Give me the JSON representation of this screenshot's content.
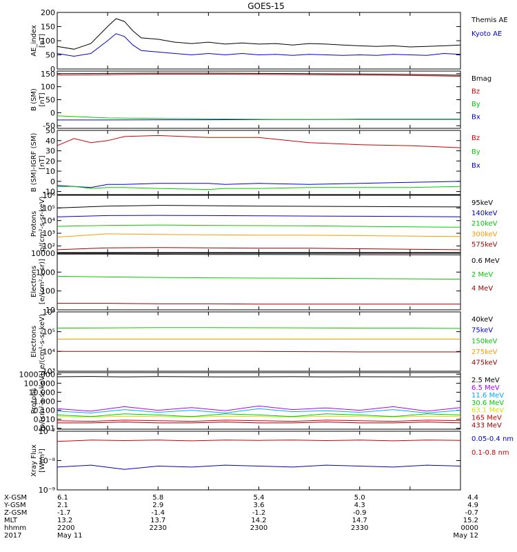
{
  "title": "GOES-15",
  "colors": {
    "black": "#000000",
    "blue": "#0000cc",
    "green": "#00cc00",
    "red": "#cc0000",
    "orange": "#ff9900",
    "yellow": "#dddd00",
    "cyan": "#00aaff",
    "purple": "#aa00ff",
    "brown": "#883300",
    "darkred": "#990000"
  },
  "chart_data": [
    {
      "type": "line",
      "ylabel": [
        "AE_index",
        "[nT]"
      ],
      "ylim": [
        0,
        200
      ],
      "yticks": [
        "0",
        "50",
        "100",
        "150",
        "200"
      ],
      "yscale": "linear",
      "x_minutes_since_2200": [
        0,
        10,
        20,
        30,
        35,
        40,
        45,
        50,
        60,
        70,
        80,
        90,
        100,
        110,
        120,
        130,
        140,
        150,
        160,
        170,
        180,
        190,
        200,
        210,
        220,
        230,
        240
      ],
      "series": [
        {
          "name": "Kyoto AE",
          "color": "blue",
          "values": [
            55,
            45,
            55,
            100,
            125,
            115,
            85,
            65,
            60,
            55,
            50,
            55,
            50,
            55,
            50,
            52,
            48,
            52,
            50,
            48,
            50,
            48,
            52,
            50,
            48,
            55,
            52
          ]
        },
        {
          "name": "Themis AE",
          "color": "black",
          "values": [
            80,
            70,
            90,
            150,
            178,
            168,
            135,
            110,
            105,
            95,
            90,
            95,
            88,
            92,
            88,
            90,
            85,
            90,
            88,
            85,
            82,
            80,
            82,
            78,
            80,
            82,
            85
          ]
        }
      ]
    },
    {
      "type": "line",
      "ylabel": [
        "B (SM)",
        "[nT]"
      ],
      "ylim": [
        -60,
        160
      ],
      "yticks": [
        "-50",
        "0",
        "50",
        "100",
        "150"
      ],
      "yscale": "linear",
      "x_minutes_since_2200": [
        0,
        30,
        60,
        90,
        120,
        150,
        180,
        210,
        240
      ],
      "series": [
        {
          "name": "Bx",
          "color": "blue",
          "values": [
            -28,
            -28,
            -27,
            -27,
            -26,
            -26,
            -25,
            -25,
            -25
          ]
        },
        {
          "name": "By",
          "color": "green",
          "values": [
            -12,
            -20,
            -22,
            -24,
            -25,
            -26,
            -26,
            -26,
            -26
          ]
        },
        {
          "name": "Bz",
          "color": "red",
          "values": [
            145,
            146,
            148,
            148,
            147,
            146,
            145,
            143,
            140
          ]
        },
        {
          "name": "Bmag",
          "color": "black",
          "values": [
            150,
            151,
            152,
            152,
            151,
            150,
            149,
            147,
            144
          ]
        }
      ]
    },
    {
      "type": "line",
      "ylabel": [
        "B (SM)-IGRF (SM)",
        "[nT]"
      ],
      "ylim": [
        -13,
        50
      ],
      "yticks": [
        "-10",
        "0",
        "10",
        "20",
        "30",
        "40",
        "50"
      ],
      "yscale": "linear",
      "x_minutes_since_2200": [
        0,
        10,
        20,
        30,
        40,
        60,
        90,
        100,
        120,
        150,
        180,
        210,
        240
      ],
      "series": [
        {
          "name": "Bx",
          "color": "blue",
          "values": [
            -4,
            -5,
            -6,
            -3,
            -3,
            -2,
            -2,
            -3,
            -2,
            -3,
            -2,
            -1,
            0
          ]
        },
        {
          "name": "By",
          "color": "green",
          "values": [
            -5,
            -5,
            -7,
            -6,
            -6,
            -7,
            -8,
            -7,
            -7,
            -6,
            -6,
            -6,
            -5
          ]
        },
        {
          "name": "Bz",
          "color": "red",
          "values": [
            35,
            42,
            38,
            40,
            44,
            45,
            43,
            43,
            43,
            38,
            36,
            35,
            33
          ]
        }
      ]
    },
    {
      "type": "line",
      "ylabel": [
        "Protons",
        "p/(cm²-s-sr-keV)"
      ],
      "ylim": [
        30,
        1000000
      ],
      "yticks": [
        "10²",
        "10³",
        "10⁴",
        "10⁵",
        "10⁶"
      ],
      "ytick_values": [
        100,
        1000,
        10000,
        100000,
        1000000
      ],
      "yscale": "log",
      "x_minutes_since_2200": [
        0,
        30,
        60,
        90,
        120,
        150,
        180,
        210,
        240
      ],
      "series": [
        {
          "name": "575keV",
          "color": "darkred",
          "values": [
            50,
            70,
            75,
            70,
            65,
            65,
            60,
            55,
            50
          ]
        },
        {
          "name": "300keV",
          "color": "orange",
          "values": [
            500,
            900,
            800,
            750,
            700,
            700,
            650,
            600,
            550
          ]
        },
        {
          "name": "210keV",
          "color": "green",
          "values": [
            3500,
            4200,
            4500,
            4200,
            4000,
            3800,
            3500,
            3200,
            3000
          ]
        },
        {
          "name": "140keV",
          "color": "blue",
          "values": [
            20000,
            25000,
            26000,
            25000,
            24000,
            23000,
            22000,
            21000,
            20000
          ]
        },
        {
          "name": "95keV",
          "color": "black",
          "values": [
            100000,
            140000,
            160000,
            150000,
            140000,
            135000,
            130000,
            125000,
            120000
          ]
        }
      ]
    },
    {
      "type": "line",
      "ylabel": [
        "Electrons",
        "[e/(cm²-s-sr)]"
      ],
      "ylim": [
        10,
        10000
      ],
      "yticks": [
        "10",
        "100",
        "1000",
        "10000"
      ],
      "ytick_values": [
        10,
        100,
        1000,
        10000
      ],
      "yscale": "log",
      "x_minutes_since_2200": [
        0,
        30,
        60,
        90,
        120,
        150,
        180,
        210,
        240
      ],
      "series": [
        {
          "name": "4 MeV",
          "color": "darkred",
          "values": [
            22,
            22,
            21,
            21,
            20,
            20,
            20,
            20,
            20
          ]
        },
        {
          "name": "2 MeV",
          "color": "green",
          "values": [
            600,
            550,
            520,
            500,
            480,
            470,
            450,
            440,
            420
          ]
        },
        {
          "name": "0.6 MeV",
          "color": "black",
          "values": [
            9000,
            9000,
            8800,
            8700,
            8600,
            8500,
            8400,
            8300,
            8200
          ]
        }
      ]
    },
    {
      "type": "line",
      "ylabel": [
        "Electrons",
        "e/(cm²-s-sr-keV)"
      ],
      "ylim": [
        1000,
        1000000
      ],
      "yticks": [
        "10³",
        "10⁴",
        "10⁵",
        "10⁶"
      ],
      "ytick_values": [
        1000,
        10000,
        100000,
        1000000
      ],
      "yscale": "log",
      "x_minutes_since_2200": [
        0,
        30,
        60,
        90,
        120,
        150,
        180,
        210,
        240
      ],
      "series": [
        {
          "name": "475keV",
          "color": "darkred",
          "values": [
            10000,
            10000,
            10000,
            10000,
            10000,
            9800,
            9500,
            9500,
            9500
          ]
        },
        {
          "name": "275keV",
          "color": "orange",
          "values": [
            42000,
            42000,
            42000,
            42000,
            42000,
            42000,
            42000,
            42000,
            42000
          ]
        },
        {
          "name": "150keV",
          "color": "green",
          "values": [
            150000,
            155000,
            160000,
            160000,
            158000,
            155000,
            150000,
            150000,
            145000
          ]
        },
        {
          "name": "75keV",
          "color": "blue",
          "values": [
            1200000,
            1200000,
            1200000,
            1200000,
            1200000,
            1200000,
            1200000,
            1200000,
            1200000
          ]
        },
        {
          "name": "40keV",
          "color": "black",
          "values": [
            1500000,
            1500000,
            1500000,
            1500000,
            1500000,
            1500000,
            1500000,
            1500000,
            1500000
          ]
        }
      ]
    },
    {
      "type": "line",
      "ylabel": [
        "Protons",
        "[p/(cm²-s-sr-keV)]"
      ],
      "ylim": [
        0.0008,
        1500
      ],
      "yticks": [
        "0.001",
        "0.010",
        "0.100",
        "1.000",
        "10.000",
        "100.000",
        "1000.000"
      ],
      "ytick_values": [
        0.001,
        0.01,
        0.1,
        1,
        10,
        100,
        1000
      ],
      "yscale": "log",
      "x_minutes_since_2200": [
        0,
        20,
        40,
        60,
        80,
        100,
        120,
        140,
        160,
        180,
        200,
        220,
        240
      ],
      "series": [
        {
          "name": "433 MeV",
          "color": "darkred",
          "values": [
            0.004,
            0.004,
            0.005,
            0.004,
            0.004,
            0.005,
            0.004,
            0.004,
            0.005,
            0.004,
            0.004,
            0.005,
            0.004
          ]
        },
        {
          "name": "165 MeV",
          "color": "red",
          "values": [
            0.007,
            0.006,
            0.008,
            0.007,
            0.006,
            0.008,
            0.007,
            0.006,
            0.008,
            0.007,
            0.006,
            0.008,
            0.007
          ]
        },
        {
          "name": "63.1 MeV",
          "color": "yellow",
          "values": [
            0.02,
            0.018,
            0.022,
            0.02,
            0.018,
            0.022,
            0.02,
            0.018,
            0.022,
            0.02,
            0.018,
            0.022,
            0.02
          ]
        },
        {
          "name": "30.6 MeV",
          "color": "green",
          "values": [
            0.03,
            0.02,
            0.04,
            0.03,
            0.02,
            0.04,
            0.03,
            0.02,
            0.04,
            0.03,
            0.02,
            0.04,
            0.03
          ]
        },
        {
          "name": "11.6 MeV",
          "color": "cyan",
          "values": [
            0.08,
            0.05,
            0.12,
            0.06,
            0.1,
            0.05,
            0.15,
            0.07,
            0.09,
            0.06,
            0.12,
            0.05,
            0.1
          ]
        },
        {
          "name": "6.5 MeV",
          "color": "purple",
          "values": [
            0.15,
            0.08,
            0.25,
            0.1,
            0.2,
            0.09,
            0.3,
            0.12,
            0.18,
            0.1,
            0.25,
            0.08,
            0.2
          ]
        },
        {
          "name": "2.5 MeV",
          "color": "black",
          "values": [
            520,
            560,
            500,
            540,
            520,
            500,
            510,
            530,
            500,
            520,
            510,
            500,
            510
          ]
        }
      ]
    },
    {
      "type": "line",
      "ylabel": [
        "Xray Flux",
        "[W/m²]"
      ],
      "ylim": [
        1e-09,
        1e-07
      ],
      "yticks": [
        "10⁻⁹",
        "10⁻⁸",
        "10⁻⁷"
      ],
      "ytick_values": [
        1e-09,
        1e-08,
        1e-07
      ],
      "yscale": "log",
      "x_minutes_since_2200": [
        0,
        20,
        40,
        60,
        80,
        100,
        120,
        140,
        160,
        180,
        200,
        220,
        240
      ],
      "series": [
        {
          "name": "0.1-0.8 nm",
          "color": "red",
          "values": [
            4.5e-08,
            5e-08,
            4.8e-08,
            5e-08,
            4.7e-08,
            5e-08,
            4.9e-08,
            5e-08,
            4.8e-08,
            5e-08,
            4.7e-08,
            5e-08,
            4.9e-08
          ]
        },
        {
          "name": "0.05-0.4 nm",
          "color": "blue",
          "values": [
            6e-09,
            7e-09,
            5e-09,
            6.5e-09,
            6e-09,
            7e-09,
            6.5e-09,
            6e-09,
            7e-09,
            6.5e-09,
            6e-09,
            7e-09,
            6.5e-09
          ]
        }
      ]
    }
  ],
  "footer": {
    "row_labels": [
      "X-GSM",
      "Y-GSM",
      "Z-GSM",
      "MLT",
      "hhmm",
      "2017"
    ],
    "columns": [
      [
        "6.1",
        "2.1",
        "-1.7",
        "13.2",
        "2200",
        "May 11"
      ],
      [
        "5.8",
        "2.9",
        "-1.4",
        "13.7",
        "2230",
        ""
      ],
      [
        "5.4",
        "3.6",
        "-1.2",
        "14.2",
        "2300",
        ""
      ],
      [
        "5.0",
        "4.3",
        "-0.9",
        "14.7",
        "2330",
        ""
      ],
      [
        "4.4",
        "4.9",
        "-0.7",
        "15.2",
        "0000",
        "May 12"
      ]
    ]
  }
}
